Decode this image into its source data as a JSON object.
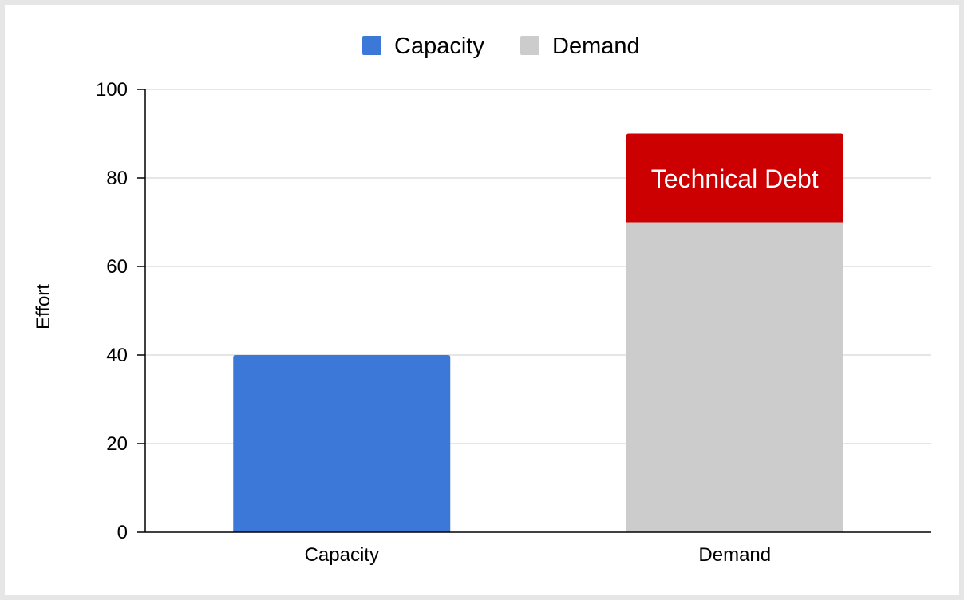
{
  "chart_data": {
    "type": "bar",
    "stacked": true,
    "categories": [
      "Capacity",
      "Demand"
    ],
    "series": [
      {
        "name": "Capacity",
        "color": "#3c78d8",
        "values": [
          40,
          null
        ]
      },
      {
        "name": "Demand",
        "color": "#cccccc",
        "values": [
          null,
          70
        ]
      },
      {
        "name": "",
        "color": "#cc0000",
        "values": [
          null,
          20
        ]
      }
    ],
    "annotations": [
      {
        "category": "Demand",
        "text": "Technical Debt"
      }
    ],
    "title": "",
    "xlabel": "",
    "ylabel": "Effort",
    "ylim": [
      0,
      100
    ],
    "yticks": [
      0,
      20,
      40,
      60,
      80,
      100
    ],
    "grid": true,
    "legend": {
      "position": "top",
      "entries": [
        "Capacity",
        "Demand"
      ]
    }
  }
}
